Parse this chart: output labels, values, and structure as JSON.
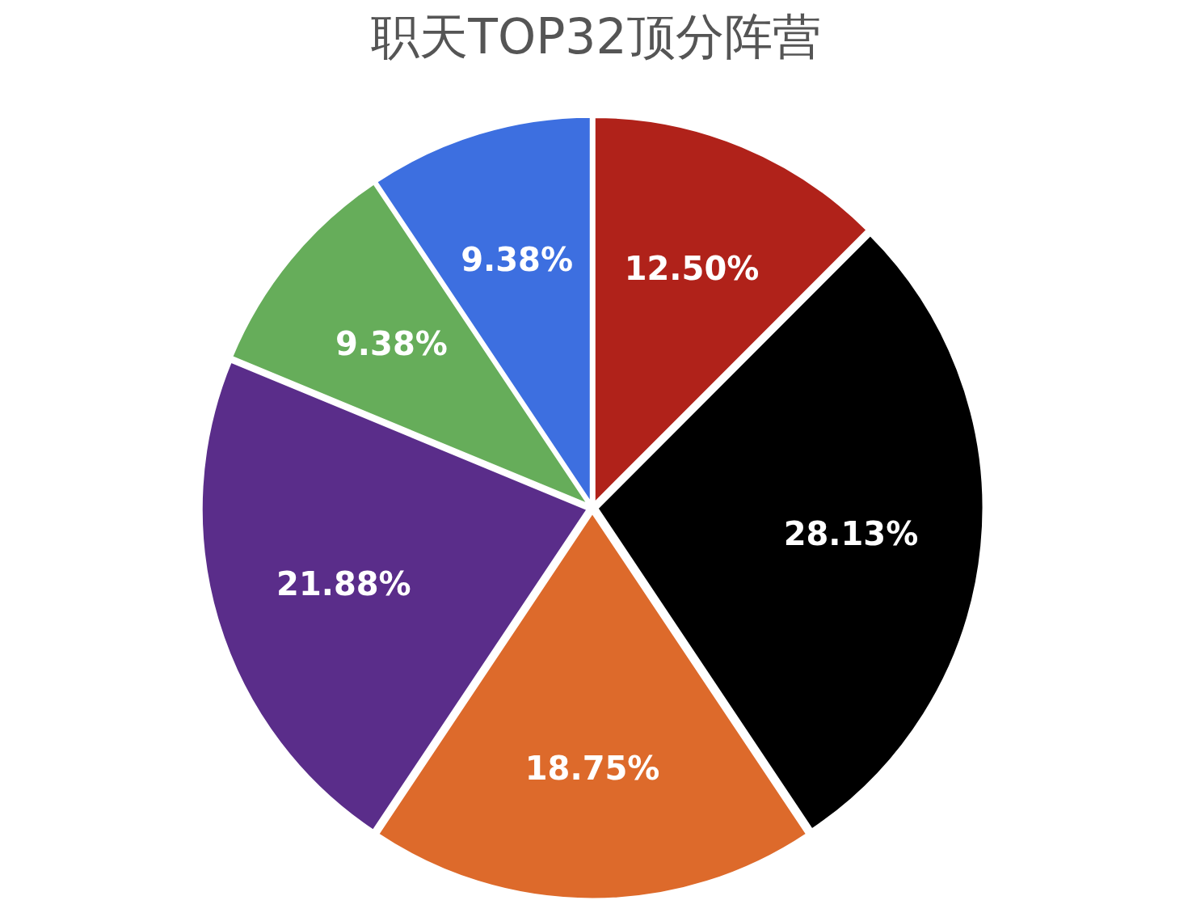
{
  "chart_data": {
    "type": "pie",
    "title": "职天TOP32顶分阵营",
    "categories": [
      null,
      null,
      null,
      null,
      null,
      null
    ],
    "values": [
      12.5,
      28.13,
      18.75,
      21.88,
      9.38,
      9.38
    ],
    "value_labels": [
      "12.50%",
      "28.13%",
      "18.75%",
      "21.88%",
      "9.38%",
      "9.38%"
    ],
    "colors": [
      "#b0221a",
      "#000000",
      "#dd6a2b",
      "#5a2d8a",
      "#66ad5a",
      "#3d6fe0"
    ]
  }
}
